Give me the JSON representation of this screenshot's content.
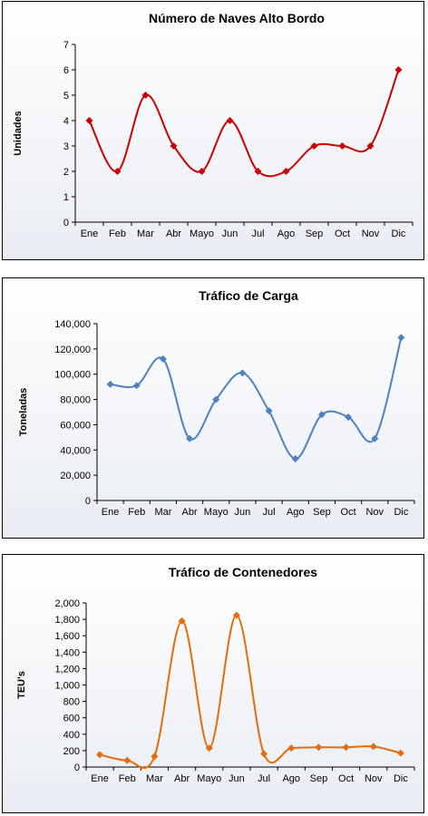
{
  "colors": {
    "red": "#cc0000",
    "blue": "#4f81bd",
    "orange": "#e46c0a"
  },
  "chart_data": [
    {
      "type": "line",
      "title": "Número de Naves Alto Bordo",
      "ylabel": "Unidades",
      "xlabel": "",
      "categories": [
        "Ene",
        "Feb",
        "Mar",
        "Abr",
        "Mayo",
        "Jun",
        "Jul",
        "Ago",
        "Sep",
        "Oct",
        "Nov",
        "Dic"
      ],
      "series": [
        {
          "values": [
            4,
            2,
            5,
            3,
            2,
            4,
            2,
            2,
            3,
            3,
            3,
            6
          ]
        }
      ],
      "ylim": [
        0,
        7
      ],
      "yticks": [
        "0",
        "1",
        "2",
        "3",
        "4",
        "5",
        "6",
        "7"
      ],
      "grid": false,
      "color": "#cc0000",
      "smooth": true
    },
    {
      "type": "line",
      "title": "Tráfico de Carga",
      "ylabel": "Toneladas",
      "xlabel": "",
      "categories": [
        "Ene",
        "Feb",
        "Mar",
        "Abr",
        "Mayo",
        "Jun",
        "Jul",
        "Ago",
        "Sep",
        "Oct",
        "Nov",
        "Dic"
      ],
      "series": [
        {
          "values": [
            92000,
            91000,
            112000,
            49000,
            80000,
            101000,
            71000,
            33000,
            68000,
            66000,
            49000,
            129000
          ]
        }
      ],
      "ylim": [
        0,
        140000
      ],
      "yticks": [
        "0",
        "20,000",
        "40,000",
        "60,000",
        "80,000",
        "100,000",
        "120,000",
        "140,000"
      ],
      "grid": false,
      "color": "#4f81bd",
      "smooth": true
    },
    {
      "type": "line",
      "title": "Tráfico de Contenedores",
      "ylabel": "TEU's",
      "xlabel": "",
      "categories": [
        "Ene",
        "Feb",
        "Mar",
        "Abr",
        "Mayo",
        "Jun",
        "Jul",
        "Ago",
        "Sep",
        "Oct",
        "Nov",
        "Dic"
      ],
      "series": [
        {
          "values": [
            150,
            80,
            130,
            1780,
            230,
            1850,
            160,
            230,
            240,
            240,
            250,
            170
          ]
        }
      ],
      "ylim": [
        0,
        2000
      ],
      "yticks": [
        "0",
        "200",
        "400",
        "600",
        "800",
        "1,000",
        "1,200",
        "1,400",
        "1,600",
        "1,800",
        "2,000"
      ],
      "grid": false,
      "color": "#e46c0a",
      "smooth": true
    }
  ]
}
